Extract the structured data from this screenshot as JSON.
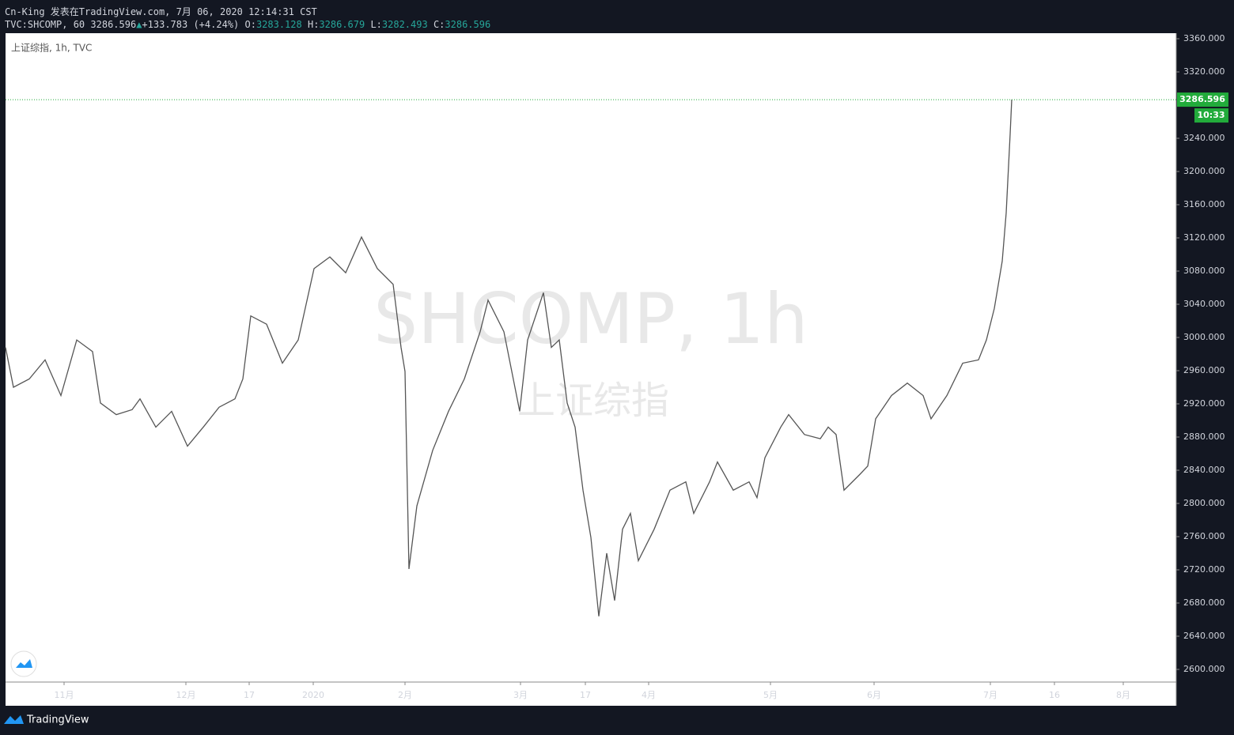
{
  "header": {
    "author_line": "Cn-King 发表在TradingView.com, 7月 06, 2020 12:14:31 CST",
    "symbol": "TVC:SHCOMP, 60",
    "last": "3286.596",
    "arrow": "▲",
    "change": "+133.783 (+4.24%)",
    "open_label": "O:",
    "open": "3283.128",
    "high_label": "H:",
    "high": "3286.679",
    "low_label": "L:",
    "low": "3282.493",
    "close_label": "C:",
    "close": "3286.596"
  },
  "chart_data": {
    "type": "line",
    "legend": "上证综指, 1h, TVC",
    "color": "#555555",
    "watermark": [
      "SHCOMP, 1h",
      "上证综指"
    ],
    "price_label": "3286.596",
    "countdown": "10:33",
    "price_color": "#22ab3b",
    "x": [
      0,
      1,
      3,
      5,
      7,
      9,
      11,
      12,
      14,
      16,
      17,
      19,
      21,
      23,
      25,
      27,
      29,
      30,
      31,
      33,
      35,
      37,
      38,
      39,
      41,
      43,
      45,
      47,
      49,
      50,
      50.5,
      51,
      52,
      54,
      56,
      58,
      60,
      61,
      63,
      65,
      66,
      68,
      69,
      70,
      71,
      72,
      73,
      74,
      75,
      76,
      77,
      78,
      79,
      80,
      82,
      84,
      86,
      87,
      89,
      90,
      92,
      94,
      95,
      96,
      98,
      99,
      101,
      103,
      104,
      105,
      106,
      108,
      109,
      110,
      112,
      114,
      116,
      117,
      119,
      121,
      123,
      124,
      125,
      126,
      126.5,
      127,
      127.2
    ],
    "values": [
      2988,
      2940,
      2950,
      2973,
      2930,
      2997,
      2983,
      2921,
      2907,
      2913,
      2926,
      2892,
      2911,
      2869,
      2892,
      2916,
      2926,
      2950,
      3026,
      3016,
      2969,
      2997,
      3040,
      3083,
      3097,
      3078,
      3121,
      3083,
      3064,
      2988,
      2959,
      2721,
      2797,
      2864,
      2911,
      2950,
      3007,
      3045,
      3007,
      2911,
      2997,
      3054,
      2988,
      2997,
      2921,
      2892,
      2816,
      2759,
      2664,
      2740,
      2683,
      2769,
      2788,
      2731,
      2769,
      2816,
      2826,
      2788,
      2826,
      2850,
      2816,
      2826,
      2807,
      2855,
      2892,
      2907,
      2883,
      2878,
      2892,
      2883,
      2816,
      2835,
      2845,
      2902,
      2930,
      2945,
      2930,
      2902,
      2930,
      2969,
      2973,
      2997,
      3035,
      3092,
      3150,
      3245,
      3286.596
    ],
    "xlim": [
      0,
      148
    ],
    "xticks": [
      {
        "value": 7.4,
        "label": "11月"
      },
      {
        "value": 22.8,
        "label": "12月"
      },
      {
        "value": 30.8,
        "label": "17"
      },
      {
        "value": 38.9,
        "label": "2020"
      },
      {
        "value": 50.5,
        "label": "2月"
      },
      {
        "value": 65.1,
        "label": "3月"
      },
      {
        "value": 73.3,
        "label": "17"
      },
      {
        "value": 81.3,
        "label": "4月"
      },
      {
        "value": 96.7,
        "label": "5月"
      },
      {
        "value": 109.8,
        "label": "6月"
      },
      {
        "value": 124.5,
        "label": "7月"
      },
      {
        "value": 132.6,
        "label": "16"
      },
      {
        "value": 141.3,
        "label": "8月"
      }
    ],
    "ylim": [
      2593.33,
      3366.67
    ],
    "yticks": [
      {
        "value": 3360,
        "label": "3360.000"
      },
      {
        "value": 3320,
        "label": "3320.000"
      },
      {
        "value": 3240,
        "label": "3240.000"
      },
      {
        "value": 3200,
        "label": "3200.000"
      },
      {
        "value": 3160,
        "label": "3160.000"
      },
      {
        "value": 3120,
        "label": "3120.000"
      },
      {
        "value": 3080,
        "label": "3080.000"
      },
      {
        "value": 3040,
        "label": "3040.000"
      },
      {
        "value": 3000,
        "label": "3000.000"
      },
      {
        "value": 2960,
        "label": "2960.000"
      },
      {
        "value": 2920,
        "label": "2920.000"
      },
      {
        "value": 2880,
        "label": "2880.000"
      },
      {
        "value": 2840,
        "label": "2840.000"
      },
      {
        "value": 2800,
        "label": "2800.000"
      },
      {
        "value": 2760,
        "label": "2760.000"
      },
      {
        "value": 2720,
        "label": "2720.000"
      },
      {
        "value": 2680,
        "label": "2680.000"
      },
      {
        "value": 2640,
        "label": "2640.000"
      },
      {
        "value": 2600,
        "label": "2600.000"
      }
    ],
    "grid": false
  },
  "footer": {
    "brand": "TradingView"
  }
}
